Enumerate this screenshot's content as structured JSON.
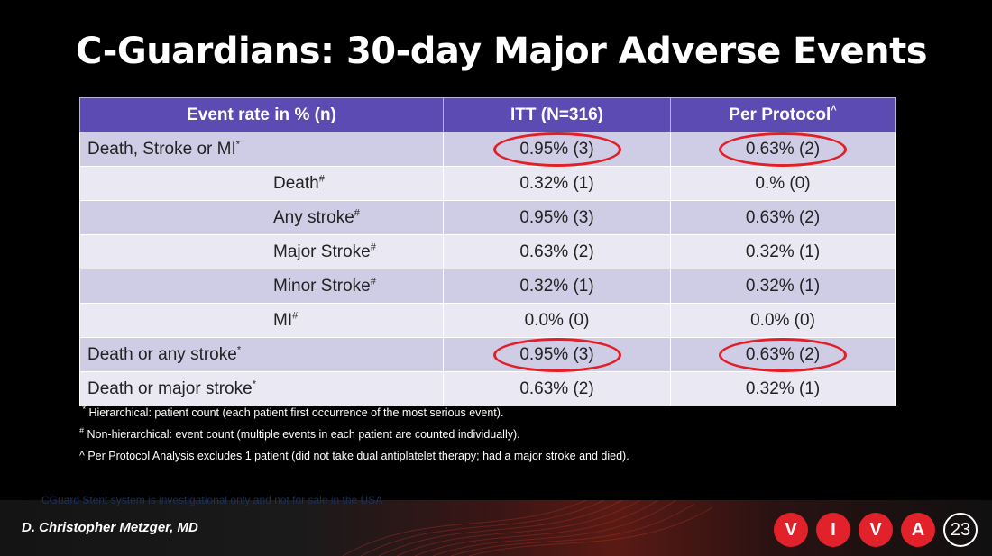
{
  "slide": {
    "title": "C-Guardians: 30-day Major Adverse Events"
  },
  "table": {
    "headers": {
      "col1": "Event rate in % (n)",
      "col2": "ITT (N=316)",
      "col3_text": "Per Protocol",
      "col3_sup": "^"
    },
    "rows": [
      {
        "label": "Death, Stroke or MI",
        "sup": "*",
        "itt": "0.95% (3)",
        "pp": "0.63% (2)"
      },
      {
        "label": "Death",
        "sup": "#",
        "itt": "0.32% (1)",
        "pp": "0.% (0)"
      },
      {
        "label": "Any stroke",
        "sup": "#",
        "itt": "0.95% (3)",
        "pp": "0.63% (2)"
      },
      {
        "label": "Major Stroke",
        "sup": "#",
        "itt": "0.63% (2)",
        "pp": "0.32% (1)"
      },
      {
        "label": "Minor Stroke",
        "sup": "#",
        "itt": "0.32% (1)",
        "pp": "0.32% (1)"
      },
      {
        "label": "MI",
        "sup": "#",
        "itt": "0.0% (0)",
        "pp": "0.0% (0)"
      },
      {
        "label": "Death or any stroke",
        "sup": "*",
        "itt": "0.95% (3)",
        "pp": "0.63% (2)"
      },
      {
        "label": "Death or major stroke",
        "sup": "*",
        "itt": "0.63% (2)",
        "pp": "0.32% (1)"
      }
    ],
    "highlight_color": "#e41e26",
    "header_color": "#5b4bb3"
  },
  "footnotes": {
    "n1_mark": "*",
    "n1_text": " Hierarchical: patient count (each patient first occurrence of the most serious event).",
    "n2_mark": "#",
    "n2_text": " Non-hierarchical: event count (multiple events in each patient are counted individually).",
    "n3_text": "^ Per Protocol Analysis excludes 1 patient (did not take dual antiplatelet therapy; had a major stroke and died)."
  },
  "disclaimer": "CGuard Stent system is investigational only and not for sale in the USA",
  "footer": {
    "presenter": "D. Christopher Metzger, MD",
    "logo_letters": [
      "V",
      "I",
      "V",
      "A"
    ],
    "logo_year": "23"
  }
}
